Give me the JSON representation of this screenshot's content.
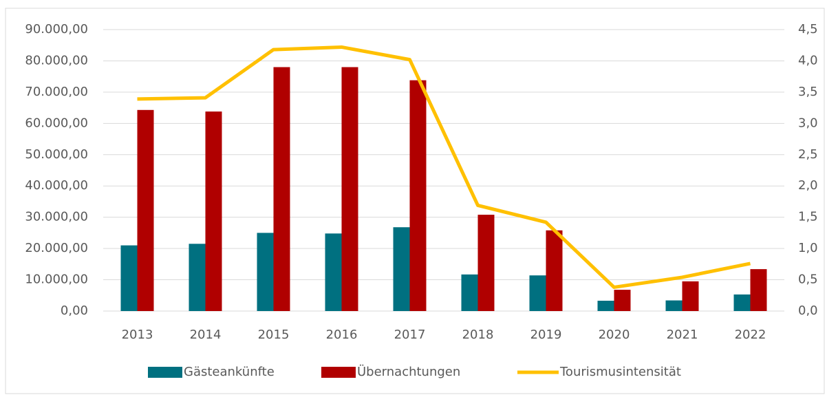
{
  "chart_data": {
    "type": "bar",
    "categories": [
      "2013",
      "2014",
      "2015",
      "2016",
      "2017",
      "2018",
      "2019",
      "2020",
      "2021",
      "2022"
    ],
    "series": [
      {
        "name": "Gästeankünfte",
        "color": "#007080",
        "type": "bar",
        "values": [
          21000,
          21500,
          25000,
          24800,
          26800,
          11700,
          11400,
          3300,
          3400,
          5300
        ]
      },
      {
        "name": "Übernachtungen",
        "color": "#b00000",
        "type": "bar",
        "values": [
          64300,
          63800,
          78000,
          78000,
          73800,
          30800,
          25800,
          6800,
          9500,
          13400
        ]
      },
      {
        "name": "Tourismusintensität",
        "color": "#ffc000",
        "type": "line",
        "axis": "y2",
        "values": [
          3.39,
          3.41,
          4.18,
          4.22,
          4.02,
          1.69,
          1.42,
          0.38,
          0.54,
          0.76
        ]
      }
    ],
    "ylim": [
      0,
      90000
    ],
    "yticks": [
      {
        "value": 0,
        "label": "0,00"
      },
      {
        "value": 10000,
        "label": "10.000,00"
      },
      {
        "value": 20000,
        "label": "20.000,00"
      },
      {
        "value": 30000,
        "label": "30.000,00"
      },
      {
        "value": 40000,
        "label": "40.000,00"
      },
      {
        "value": 50000,
        "label": "50.000,00"
      },
      {
        "value": 60000,
        "label": "60.000,00"
      },
      {
        "value": 70000,
        "label": "70.000,00"
      },
      {
        "value": 80000,
        "label": "80.000,00"
      },
      {
        "value": 90000,
        "label": "90.000,00"
      }
    ],
    "y2lim": [
      0,
      4.5
    ],
    "y2ticks": [
      {
        "value": 0,
        "label": "0,0"
      },
      {
        "value": 0.5,
        "label": "0,5"
      },
      {
        "value": 1,
        "label": "1,0"
      },
      {
        "value": 1.5,
        "label": "1,5"
      },
      {
        "value": 2,
        "label": "2,0"
      },
      {
        "value": 2.5,
        "label": "2,5"
      },
      {
        "value": 3,
        "label": "3,0"
      },
      {
        "value": 3.5,
        "label": "3,5"
      },
      {
        "value": 4,
        "label": "4,0"
      },
      {
        "value": 4.5,
        "label": "4,5"
      }
    ],
    "grid": true,
    "legend": "bottom"
  }
}
